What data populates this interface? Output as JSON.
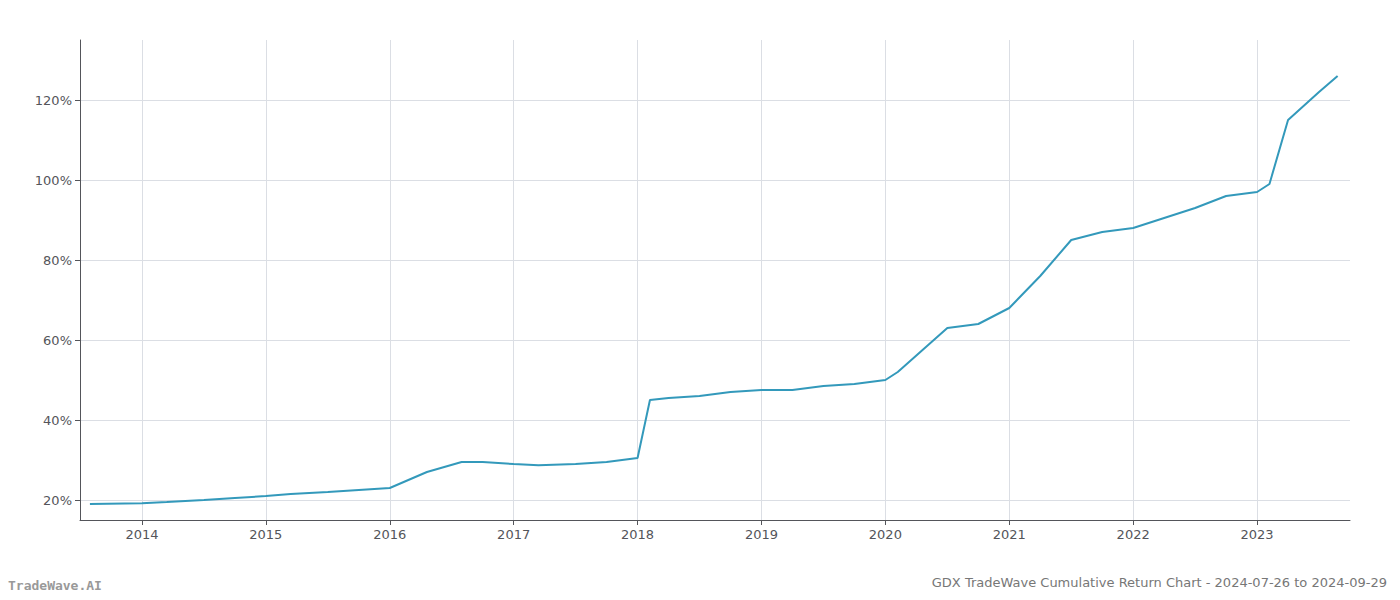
{
  "chart_data": {
    "type": "line",
    "title": "GDX TradeWave Cumulative Return Chart - 2024-07-26 to 2024-09-29",
    "annotations": [
      "TradeWave.AI"
    ],
    "color": "#3399bb",
    "grid": true,
    "x": [
      2013.58,
      2014.0,
      2014.2,
      2014.5,
      2014.75,
      2015.0,
      2015.2,
      2015.5,
      2015.75,
      2016.0,
      2016.3,
      2016.58,
      2016.75,
      2017.0,
      2017.2,
      2017.5,
      2017.75,
      2018.0,
      2018.1,
      2018.25,
      2018.5,
      2018.75,
      2019.0,
      2019.25,
      2019.5,
      2019.75,
      2020.0,
      2020.1,
      2020.3,
      2020.5,
      2020.75,
      2021.0,
      2021.25,
      2021.5,
      2021.75,
      2022.0,
      2022.25,
      2022.5,
      2022.75,
      2023.0,
      2023.1,
      2023.25,
      2023.5,
      2023.65
    ],
    "values": [
      19.0,
      19.2,
      19.5,
      20.0,
      20.5,
      21.0,
      21.5,
      22.0,
      22.5,
      23.0,
      27.0,
      29.5,
      29.5,
      29.0,
      28.7,
      29.0,
      29.5,
      30.5,
      45.0,
      45.5,
      46.0,
      47.0,
      47.5,
      47.5,
      48.5,
      49.0,
      50.0,
      52.0,
      57.5,
      63.0,
      64.0,
      68.0,
      76.0,
      85.0,
      87.0,
      88.0,
      90.5,
      93.0,
      96.0,
      97.0,
      99.0,
      115.0,
      122.0,
      126.0
    ],
    "xlim": [
      2013.5,
      2023.75
    ],
    "ylim": [
      15,
      135
    ],
    "xticks": [
      2014,
      2015,
      2016,
      2017,
      2018,
      2019,
      2020,
      2021,
      2022,
      2023
    ],
    "yticks": [
      {
        "value": 20,
        "label": "20%"
      },
      {
        "value": 40,
        "label": "40%"
      },
      {
        "value": 60,
        "label": "60%"
      },
      {
        "value": 80,
        "label": "80%"
      },
      {
        "value": 100,
        "label": "100%"
      },
      {
        "value": 120,
        "label": "120%"
      }
    ]
  }
}
